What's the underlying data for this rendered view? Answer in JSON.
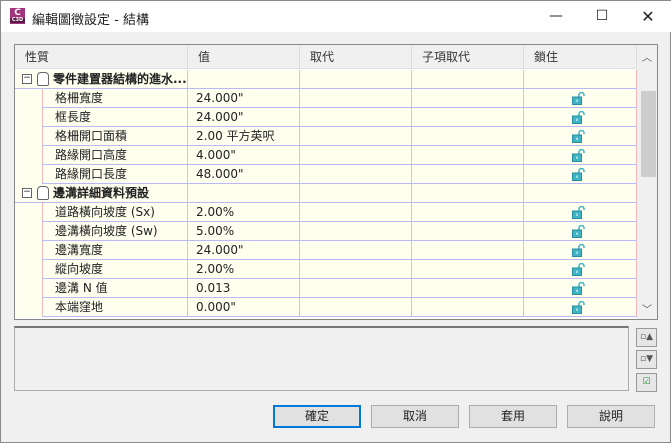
{
  "window": {
    "title": "編輯圖徵設定 - 結構",
    "app_icon_text": "C",
    "app_icon_sub": "C3D"
  },
  "grid": {
    "columns": [
      "性質",
      "值",
      "取代",
      "子項取代",
      "鎖住"
    ],
    "groups": [
      {
        "label": "零件建置器結構的進水...",
        "rows": [
          {
            "property": "格柵寬度",
            "value": "24.000\"",
            "locked": false
          },
          {
            "property": "框長度",
            "value": "24.000\"",
            "locked": false
          },
          {
            "property": "格柵開口面積",
            "value": "2.00 平方英呎",
            "locked": false
          },
          {
            "property": "路緣開口高度",
            "value": "4.000\"",
            "locked": false
          },
          {
            "property": "路緣開口長度",
            "value": "48.000\"",
            "locked": false
          }
        ]
      },
      {
        "label": "邊溝詳細資料預設",
        "rows": [
          {
            "property": "道路橫向坡度 (Sx)",
            "value": "2.00%",
            "locked": false
          },
          {
            "property": "邊溝橫向坡度 (Sw)",
            "value": "5.00%",
            "locked": false
          },
          {
            "property": "邊溝寬度",
            "value": "24.000\"",
            "locked": false
          },
          {
            "property": "縱向坡度",
            "value": "2.00%",
            "locked": false
          },
          {
            "property": "邊溝 N 值",
            "value": "0.013",
            "locked": false
          },
          {
            "property": "本端窪地",
            "value": "0.000\"",
            "locked": false
          }
        ]
      }
    ]
  },
  "buttons": {
    "ok": "確定",
    "cancel": "取消",
    "apply": "套用",
    "help": "說明"
  },
  "colors": {
    "lock": "#3fb4c4",
    "row_bg": "#fffff0",
    "accent": "#0078d7"
  }
}
